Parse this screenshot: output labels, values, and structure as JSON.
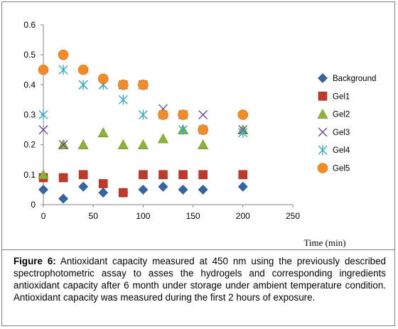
{
  "caption": {
    "label": "Figure 6:",
    "text": "Antioxidant capacity measured at 450 nm using the previously described spectrophotometric assay to asses the hydrogels and corresponding ingredients antioxidant capacity after 6 month under storage under ambient temperature condition. Antioxidant capacity was measured during the first 2 hours of exposure."
  },
  "chart_data": {
    "type": "scatter",
    "xlabel": "Time (min)",
    "ylabel": "",
    "xlim": [
      0,
      250
    ],
    "ylim": [
      0,
      0.6
    ],
    "x_ticks": [
      0,
      50,
      100,
      150,
      200,
      250
    ],
    "y_ticks": [
      0,
      0.1,
      0.2,
      0.3,
      0.4,
      0.5,
      0.6
    ],
    "grid": false,
    "legend_position": "right",
    "series": [
      {
        "name": "Background",
        "marker": "diamond",
        "color": "#3465a4",
        "x": [
          0,
          20,
          40,
          60,
          80,
          100,
          120,
          140,
          160,
          200
        ],
        "y": [
          0.05,
          0.02,
          0.06,
          0.04,
          0.04,
          0.05,
          0.06,
          0.05,
          0.05,
          0.06
        ]
      },
      {
        "name": "Gel1",
        "marker": "square",
        "color": "#c0392b",
        "x": [
          0,
          20,
          40,
          60,
          80,
          100,
          120,
          140,
          160,
          200
        ],
        "y": [
          0.09,
          0.09,
          0.1,
          0.07,
          0.04,
          0.1,
          0.1,
          0.1,
          0.1,
          0.1
        ]
      },
      {
        "name": "Gel2",
        "marker": "triangle",
        "color": "#8db33a",
        "x": [
          0,
          20,
          40,
          60,
          80,
          100,
          120,
          140,
          160,
          200
        ],
        "y": [
          0.1,
          0.2,
          0.2,
          0.24,
          0.2,
          0.2,
          0.22,
          0.25,
          0.2,
          0.25
        ]
      },
      {
        "name": "Gel3",
        "marker": "x",
        "color": "#6a4c93",
        "x": [
          0,
          20,
          40,
          60,
          80,
          100,
          120,
          140,
          160,
          200
        ],
        "y": [
          0.25,
          0.2,
          0.4,
          0.4,
          0.4,
          0.4,
          0.32,
          0.3,
          0.3,
          0.25
        ]
      },
      {
        "name": "Gel4",
        "marker": "asterisk",
        "color": "#3aa8c1",
        "x": [
          0,
          20,
          40,
          60,
          80,
          100,
          120,
          140,
          160,
          200
        ],
        "y": [
          0.3,
          0.45,
          0.4,
          0.4,
          0.35,
          0.3,
          0.3,
          0.25,
          0.25,
          0.24
        ]
      },
      {
        "name": "Gel5",
        "marker": "circle",
        "color": "#f28c28",
        "x": [
          0,
          20,
          40,
          60,
          80,
          100,
          120,
          140,
          160,
          200
        ],
        "y": [
          0.45,
          0.5,
          0.45,
          0.42,
          0.4,
          0.4,
          0.3,
          0.3,
          0.25,
          0.3
        ]
      }
    ]
  }
}
